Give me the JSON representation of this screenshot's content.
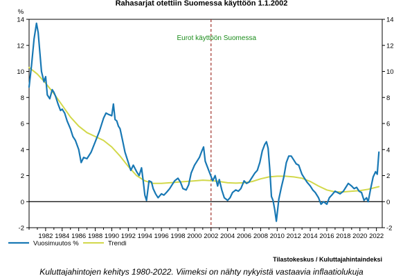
{
  "chart_data": {
    "type": "line",
    "title": "Rahasarjat otettiin Suomessa käyttöön 1.1.2002",
    "ylabel": "%",
    "ylim": [
      -2,
      14
    ],
    "y_ticks": [
      -2,
      0,
      2,
      4,
      6,
      8,
      10,
      12,
      14
    ],
    "xlim": [
      1980.0,
      2022.7
    ],
    "x_ticks": [
      1982,
      1984,
      1986,
      1988,
      1990,
      1992,
      1994,
      1996,
      1998,
      2000,
      2002,
      2004,
      2006,
      2008,
      2010,
      2012,
      2014,
      2016,
      2018,
      2020,
      2022
    ],
    "grid": false,
    "legend_position": "bottom-left",
    "annotation": {
      "text": "Eurot käyttöön Suomessa",
      "x": 2002.0
    },
    "source": "Tilastokeskus / Kuluttajahintaindeksi",
    "caption": "Kuluttajahintojen kehitys 1980-2022. Viimeksi on nähty nykyistä vastaavia inflaatiolukuja",
    "colors": {
      "series1": "#1878b4",
      "series2": "#d2d84a",
      "zero_line": "#000000",
      "annotation_line": "#a0322a",
      "annotation_text": "#1a8c1a"
    },
    "series": [
      {
        "name": "Vuosimuutos %",
        "x": [
          1980.0,
          1980.3,
          1980.6,
          1980.9,
          1981.1,
          1981.3,
          1981.5,
          1981.8,
          1982.0,
          1982.2,
          1982.5,
          1982.8,
          1983.0,
          1983.2,
          1983.5,
          1983.8,
          1984.0,
          1984.3,
          1984.6,
          1985.0,
          1985.3,
          1985.6,
          1986.0,
          1986.3,
          1986.6,
          1987.0,
          1987.5,
          1988.0,
          1988.5,
          1989.0,
          1989.3,
          1989.6,
          1990.0,
          1990.2,
          1990.4,
          1990.6,
          1990.8,
          1991.0,
          1991.3,
          1991.6,
          1992.0,
          1992.3,
          1992.6,
          1993.0,
          1993.3,
          1993.6,
          1993.8,
          1994.0,
          1994.2,
          1994.5,
          1994.8,
          1995.0,
          1995.3,
          1995.6,
          1996.0,
          1996.3,
          1996.6,
          1997.0,
          1997.3,
          1997.6,
          1998.0,
          1998.3,
          1998.6,
          1999.0,
          1999.3,
          1999.6,
          2000.0,
          2000.3,
          2000.6,
          2000.9,
          2001.1,
          2001.3,
          2001.6,
          2001.9,
          2002.2,
          2002.5,
          2002.8,
          2003.0,
          2003.3,
          2003.6,
          2004.0,
          2004.3,
          2004.6,
          2005.0,
          2005.3,
          2005.6,
          2006.0,
          2006.3,
          2006.6,
          2007.0,
          2007.3,
          2007.6,
          2007.9,
          2008.2,
          2008.5,
          2008.7,
          2008.9,
          2009.1,
          2009.3,
          2009.5,
          2009.7,
          2009.9,
          2010.2,
          2010.5,
          2010.8,
          2011.1,
          2011.4,
          2011.7,
          2012.0,
          2012.3,
          2012.6,
          2013.0,
          2013.3,
          2013.6,
          2014.0,
          2014.3,
          2014.6,
          2015.0,
          2015.3,
          2015.6,
          2016.0,
          2016.3,
          2016.6,
          2017.0,
          2017.3,
          2017.6,
          2018.0,
          2018.3,
          2018.6,
          2019.0,
          2019.3,
          2019.6,
          2019.9,
          2020.2,
          2020.5,
          2020.8,
          2021.0,
          2021.3,
          2021.6,
          2021.9,
          2022.1,
          2022.3
        ],
        "values": [
          8.8,
          10.5,
          12.5,
          13.7,
          13.0,
          11.5,
          10.0,
          9.2,
          9.6,
          8.2,
          7.9,
          8.6,
          8.4,
          8.1,
          7.5,
          7.0,
          7.1,
          6.8,
          6.2,
          5.6,
          5.0,
          4.7,
          4.0,
          3.0,
          3.4,
          3.3,
          3.8,
          4.6,
          5.4,
          6.4,
          6.8,
          6.7,
          6.6,
          7.5,
          6.3,
          6.2,
          5.8,
          5.6,
          4.7,
          3.8,
          3.0,
          2.4,
          2.8,
          2.3,
          2.0,
          2.6,
          1.6,
          0.5,
          0.1,
          1.6,
          1.5,
          1.0,
          0.6,
          0.3,
          0.6,
          0.5,
          0.7,
          1.0,
          1.3,
          1.6,
          1.8,
          1.5,
          1.0,
          0.9,
          1.3,
          2.2,
          2.8,
          3.1,
          3.4,
          3.9,
          4.2,
          3.1,
          2.6,
          2.1,
          1.6,
          2.0,
          1.2,
          1.7,
          0.9,
          0.3,
          0.1,
          0.3,
          0.7,
          0.9,
          0.8,
          1.0,
          1.6,
          1.4,
          1.5,
          1.9,
          2.2,
          2.4,
          3.0,
          3.9,
          4.4,
          4.6,
          4.1,
          2.5,
          0.4,
          0.1,
          -0.6,
          -1.5,
          0.2,
          1.1,
          1.9,
          3.0,
          3.5,
          3.5,
          3.2,
          2.9,
          2.8,
          2.1,
          1.8,
          1.5,
          1.2,
          0.9,
          0.7,
          0.3,
          -0.2,
          0.0,
          -0.2,
          0.3,
          0.5,
          0.8,
          0.7,
          0.6,
          0.8,
          1.1,
          1.4,
          1.2,
          1.0,
          1.1,
          0.8,
          0.7,
          0.1,
          0.3,
          0.0,
          1.0,
          1.9,
          2.3,
          2.1,
          3.8
        ]
      },
      {
        "name": "Trendi",
        "x": [
          1980.0,
          1981.0,
          1982.0,
          1983.0,
          1984.0,
          1985.0,
          1986.0,
          1987.0,
          1988.0,
          1989.0,
          1990.0,
          1991.0,
          1992.0,
          1993.0,
          1994.0,
          1995.0,
          1996.0,
          1997.0,
          1998.0,
          1999.0,
          2000.0,
          2001.0,
          2002.0,
          2003.0,
          2004.0,
          2005.0,
          2006.0,
          2007.0,
          2008.0,
          2009.0,
          2010.0,
          2011.0,
          2012.0,
          2013.0,
          2014.0,
          2015.0,
          2016.0,
          2017.0,
          2018.0,
          2019.0,
          2020.0,
          2021.0,
          2022.3
        ],
        "values": [
          10.3,
          9.8,
          9.1,
          8.3,
          7.4,
          6.5,
          5.8,
          5.3,
          5.0,
          4.7,
          4.2,
          3.5,
          2.7,
          2.0,
          1.6,
          1.4,
          1.4,
          1.45,
          1.5,
          1.55,
          1.6,
          1.65,
          1.62,
          1.55,
          1.45,
          1.42,
          1.45,
          1.55,
          1.75,
          1.9,
          1.95,
          1.95,
          1.9,
          1.8,
          1.55,
          1.2,
          0.9,
          0.75,
          0.75,
          0.8,
          0.85,
          0.95,
          1.15
        ]
      }
    ]
  }
}
